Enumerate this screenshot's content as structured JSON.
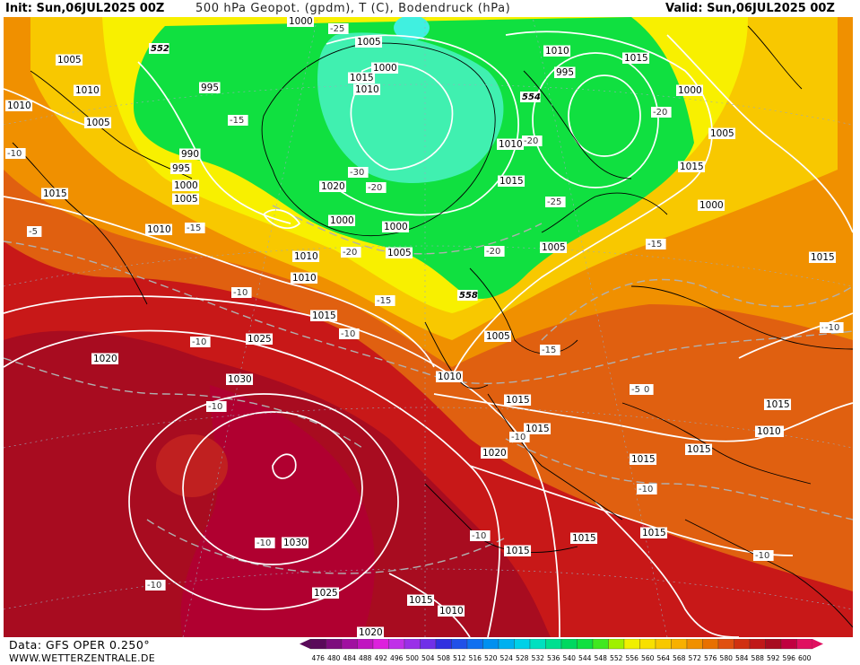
{
  "header": {
    "init": "Init: Sun,06JUL2025 00Z",
    "title": "500 hPa Geopot. (gpdm), T (C), Bodendruck (hPa)",
    "valid": "Valid: Sun,06JUL2025 00Z"
  },
  "footer": {
    "data_source": "Data: GFS OPER 0.250°",
    "website": "WWW.WETTERZENTRALE.DE"
  },
  "legend": {
    "values": [
      "476",
      "480",
      "484",
      "488",
      "492",
      "496",
      "500",
      "504",
      "508",
      "512",
      "516",
      "520",
      "524",
      "528",
      "532",
      "536",
      "540",
      "544",
      "548",
      "552",
      "556",
      "560",
      "564",
      "568",
      "572",
      "576",
      "580",
      "584",
      "588",
      "592",
      "596",
      "600"
    ],
    "colors": [
      "#5a0a5a",
      "#7d0d7d",
      "#a010a0",
      "#c015c0",
      "#dd20dd",
      "#c030e8",
      "#9a30e8",
      "#7030e8",
      "#3030e0",
      "#2050e8",
      "#1070f0",
      "#0090f0",
      "#00b0f0",
      "#00d0e8",
      "#00e0c0",
      "#00e090",
      "#00d860",
      "#10e040",
      "#40e820",
      "#a0f000",
      "#f0f000",
      "#f8e000",
      "#f8c800",
      "#f8b000",
      "#f09000",
      "#e87000",
      "#e05010",
      "#d03010",
      "#c01818",
      "#a80c20",
      "#c00040",
      "#e01060"
    ]
  },
  "map": {
    "geopotential_labels": [
      "552",
      "554",
      "558"
    ],
    "pressure_labels": [
      "1000",
      "1005",
      "1010",
      "1015",
      "995",
      "1000",
      "1005",
      "1010",
      "1015",
      "1010",
      "1000",
      "995",
      "1000",
      "1005",
      "1010",
      "1005",
      "1015",
      "1015",
      "1010",
      "990",
      "995",
      "1000",
      "1005",
      "1010",
      "1015",
      "1020",
      "1010",
      "1005",
      "1000",
      "1005",
      "1010",
      "1015",
      "1020",
      "1025",
      "1030",
      "1030",
      "1025",
      "1020",
      "1015",
      "1010",
      "1005",
      "1000",
      "1010",
      "1015",
      "1015",
      "1020",
      "1015",
      "1015",
      "1015",
      "1015",
      "1010",
      "1015",
      "1015",
      "1015",
      "1015",
      "1010",
      "1020"
    ],
    "temperature_labels": [
      "-25",
      "-15",
      "-15",
      "-30",
      "-20",
      "-20",
      "-20",
      "-25",
      "-20",
      "-20",
      "-15",
      "-10",
      "-15",
      "-10",
      "-10",
      "-10",
      "-15",
      "-10",
      "-10",
      "-10",
      "-10",
      "-10",
      "-10",
      "-10",
      "-10",
      "-10",
      "-5",
      "-5",
      "-10",
      "-15"
    ],
    "colors": {
      "green": "#10e040",
      "cyan": "#40f0b0",
      "yellow": "#f8f000",
      "gold": "#f8c800",
      "orange": "#f09000",
      "dark_orange": "#e06010",
      "red": "#c81818",
      "dark_red": "#a80c20",
      "crimson": "#b00030",
      "contour": "#ffffff",
      "temp_contour": "#b0b0b0",
      "coast": "#000000"
    }
  }
}
